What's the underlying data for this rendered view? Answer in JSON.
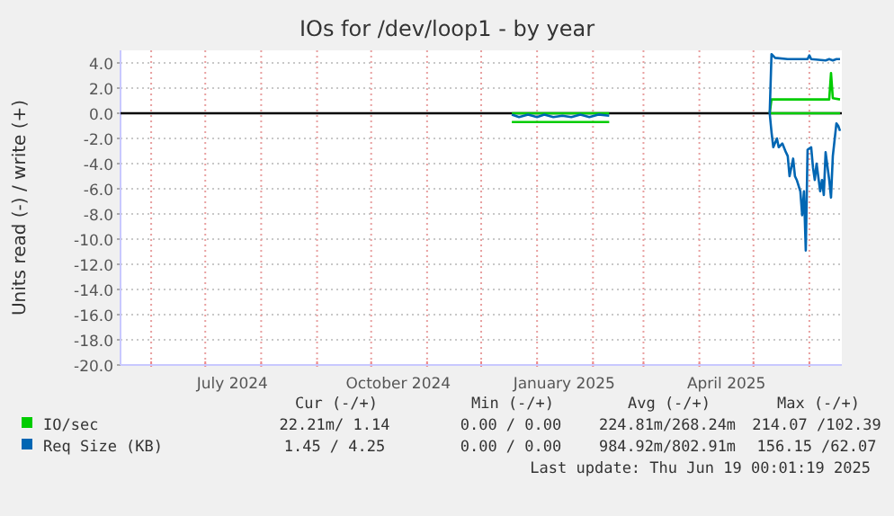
{
  "chart_data": {
    "type": "line",
    "title": "IOs for /dev/loop1 - by year",
    "ylabel": "Units read (-) / write (+)",
    "xlim": [
      "2024-05-15",
      "2025-06-19"
    ],
    "xticks": [
      {
        "value": "2024-06-01",
        "label": null
      },
      {
        "value": "2024-07-01",
        "label": null
      },
      {
        "value": "2024-07-16",
        "label": "July 2024"
      },
      {
        "value": "2024-08-01",
        "label": null
      },
      {
        "value": "2024-09-01",
        "label": null
      },
      {
        "value": "2024-10-01",
        "label": null
      },
      {
        "value": "2024-10-16",
        "label": "October 2024"
      },
      {
        "value": "2024-11-01",
        "label": null
      },
      {
        "value": "2024-12-01",
        "label": null
      },
      {
        "value": "2025-01-01",
        "label": null
      },
      {
        "value": "2025-01-16",
        "label": "January 2025"
      },
      {
        "value": "2025-02-01",
        "label": null
      },
      {
        "value": "2025-03-01",
        "label": null
      },
      {
        "value": "2025-04-01",
        "label": null
      },
      {
        "value": "2025-04-16",
        "label": "April 2025"
      },
      {
        "value": "2025-05-01",
        "label": null
      },
      {
        "value": "2025-06-01",
        "label": null
      }
    ],
    "ylim": [
      -20,
      5
    ],
    "yticks": [
      {
        "value": 4,
        "label": "4.0"
      },
      {
        "value": 2,
        "label": "2.0"
      },
      {
        "value": 0,
        "label": "0.0"
      },
      {
        "value": -2,
        "label": "-2.0"
      },
      {
        "value": -4,
        "label": "-4.0"
      },
      {
        "value": -6,
        "label": "-6.0"
      },
      {
        "value": -8,
        "label": "-8.0"
      },
      {
        "value": -10,
        "label": "-10.0"
      },
      {
        "value": -12,
        "label": "-12.0"
      },
      {
        "value": -14,
        "label": "-14.0"
      },
      {
        "value": -16,
        "label": "-16.0"
      },
      {
        "value": -18,
        "label": "-18.0"
      },
      {
        "value": -20,
        "label": "-20.0"
      }
    ],
    "grid": true,
    "legend": "bottom",
    "ref_lines": [
      {
        "axis": "y",
        "value": 0,
        "color": "#000000"
      }
    ],
    "series": [
      {
        "color": "#00cc00",
        "x": [
          "2024-12-18",
          "2025-02-10",
          "2025-02-11",
          "2025-05-10",
          "2025-06-18"
        ],
        "values": [
          -0.7,
          -0.7,
          null,
          0,
          0
        ]
      },
      {
        "name": "IO/sec",
        "color": "#00cc00",
        "x": [
          "2024-12-18",
          "2025-02-10",
          "2025-02-11",
          "2025-05-10",
          "2025-05-11",
          "2025-06-12",
          "2025-06-13",
          "2025-06-14",
          "2025-06-18"
        ],
        "values": [
          0,
          0,
          null,
          0,
          1.1,
          1.1,
          3.2,
          1.2,
          1.1
        ]
      },
      {
        "color": "#0066b3",
        "x": [
          "2024-12-18",
          "2024-12-22",
          "2024-12-27",
          "2025-01-01",
          "2025-01-05",
          "2025-01-10",
          "2025-01-15",
          "2025-01-20",
          "2025-01-25",
          "2025-01-30",
          "2025-02-04",
          "2025-02-10",
          "2025-02-11",
          "2025-05-10",
          "2025-05-11",
          "2025-05-12",
          "2025-05-14",
          "2025-05-15",
          "2025-05-17",
          "2025-05-19",
          "2025-05-20",
          "2025-05-21",
          "2025-05-23",
          "2025-05-24",
          "2025-05-25",
          "2025-05-27",
          "2025-05-28",
          "2025-05-29",
          "2025-05-30",
          "2025-05-31",
          "2025-06-02",
          "2025-06-03",
          "2025-06-04",
          "2025-06-05",
          "2025-06-07",
          "2025-06-08",
          "2025-06-09",
          "2025-06-10",
          "2025-06-12",
          "2025-06-13",
          "2025-06-14",
          "2025-06-16",
          "2025-06-17",
          "2025-06-18"
        ],
        "values": [
          -0.1,
          -0.3,
          -0.1,
          -0.3,
          -0.1,
          -0.3,
          -0.2,
          -0.3,
          -0.1,
          -0.3,
          -0.1,
          -0.2,
          null,
          0,
          -1.5,
          -2.7,
          -2.0,
          -2.7,
          -2.4,
          -3.1,
          -3.4,
          -5.0,
          -3.6,
          -5.0,
          -5.3,
          -6.2,
          -8.1,
          -6.2,
          -10.9,
          -2.9,
          -2.7,
          -4.3,
          -5.3,
          -4.0,
          -6.2,
          -5.3,
          -6.5,
          -3.1,
          -5.3,
          -6.7,
          -3.4,
          -0.8,
          -1.0,
          -1.4
        ]
      },
      {
        "name": "Req Size (KB)",
        "color": "#0066b3",
        "x": [
          "2025-05-10",
          "2025-05-11",
          "2025-05-13",
          "2025-05-20",
          "2025-05-31",
          "2025-06-01",
          "2025-06-02",
          "2025-06-10",
          "2025-06-12",
          "2025-06-14",
          "2025-06-16",
          "2025-06-18"
        ],
        "values": [
          0,
          4.7,
          4.4,
          4.3,
          4.3,
          4.6,
          4.3,
          4.2,
          4.3,
          4.2,
          4.3,
          4.3
        ]
      }
    ],
    "annotations": [
      "Cur (-/+)",
      "Min (-/+)",
      "Avg (-/+)",
      "Max (-/+)",
      "22.21m/ 1.14",
      "0.00 / 0.00",
      "224.81m/268.24m",
      "214.07 /102.39",
      "1.45 / 4.25",
      "0.00 / 0.00",
      "984.92m/802.91m",
      "156.15 /62.07",
      "Last update: Thu Jun 19 00:01:19 2025"
    ]
  }
}
